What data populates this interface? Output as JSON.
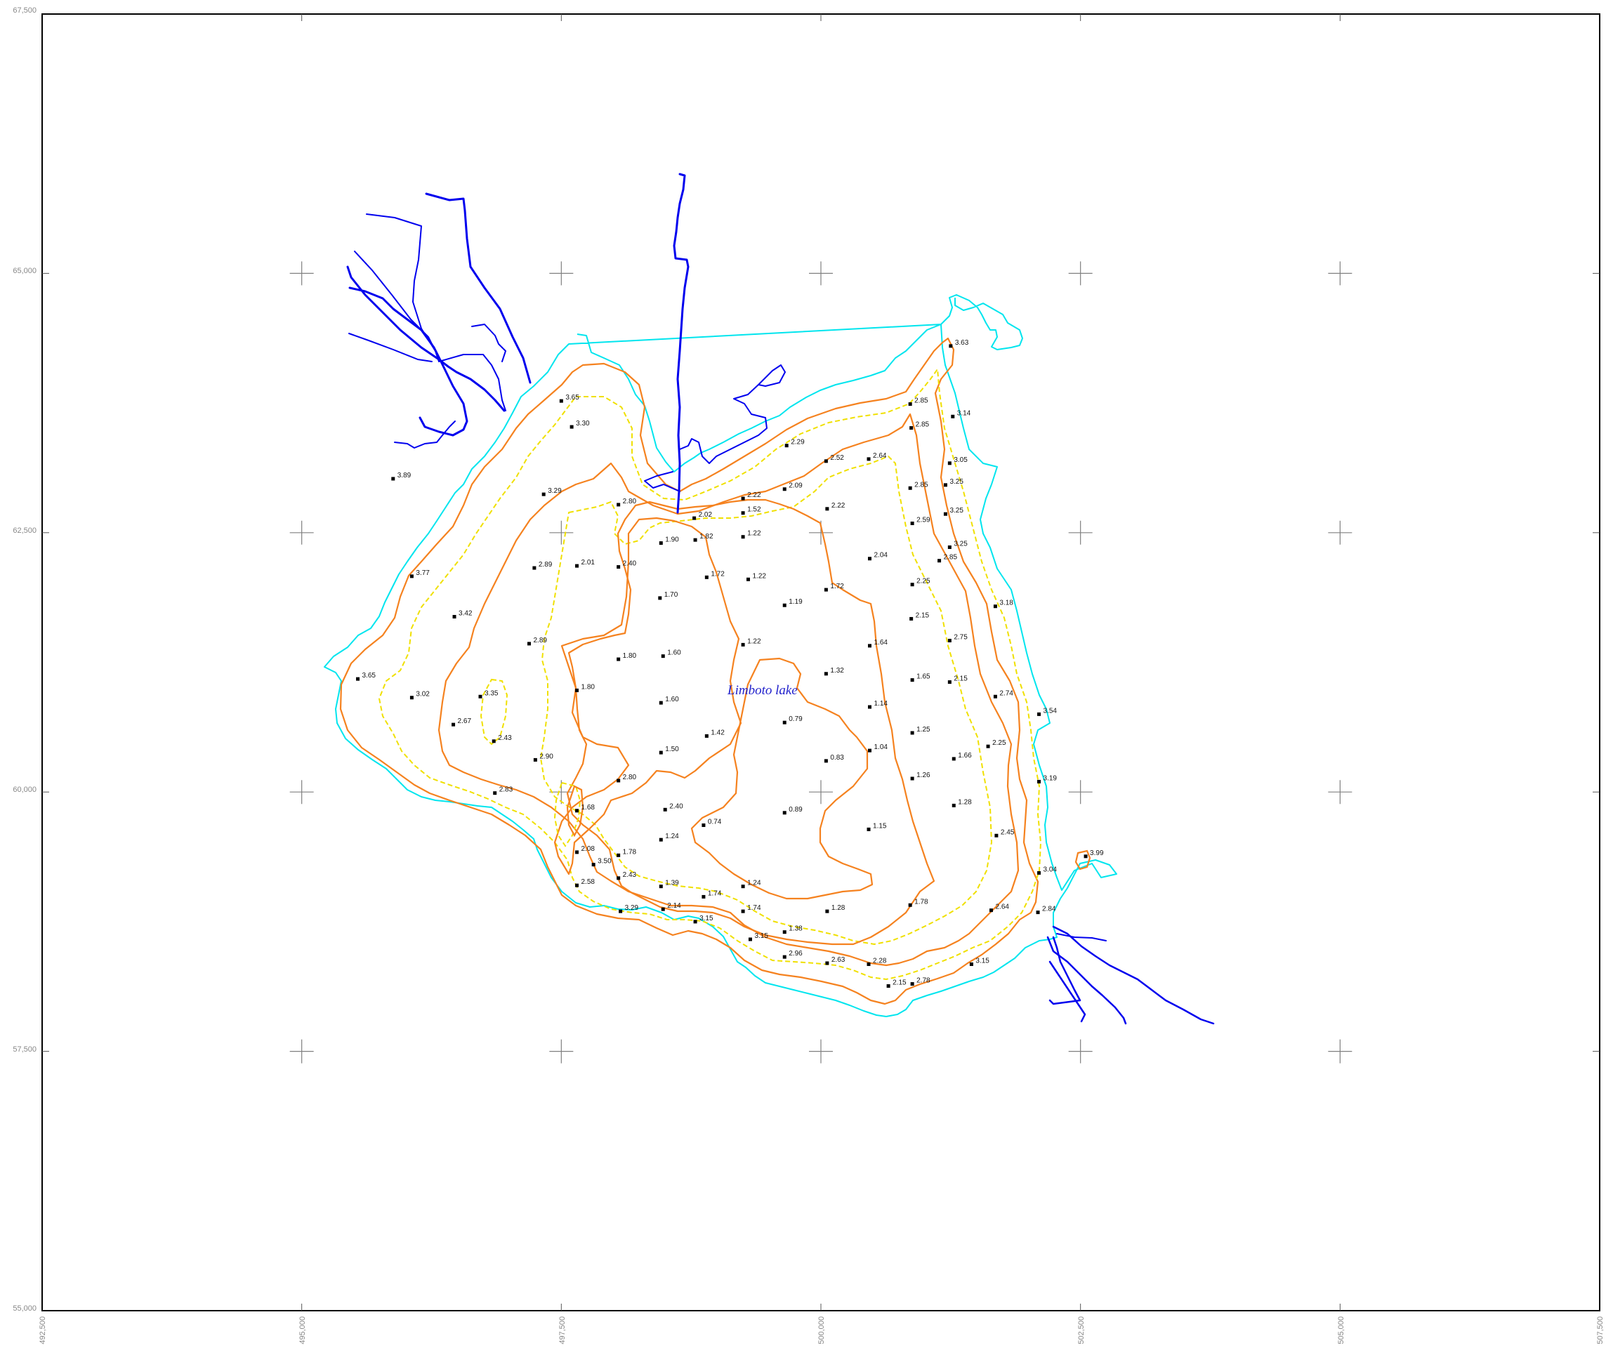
{
  "map": {
    "lake_label": "Limboto lake",
    "x_ticks": [
      "492,500",
      "495,000",
      "497,500",
      "500,000",
      "502,500",
      "505,000",
      "507,500"
    ],
    "y_ticks": [
      "67,500",
      "65,000",
      "62,500",
      "60,000",
      "57,500",
      "55,000"
    ],
    "colors": {
      "frame": "#000000",
      "shoreline": "#00e5ee",
      "river": "#0000ee",
      "contour_solid": "#f5821f",
      "contour_dashed": "#f0e000",
      "grid_cross": "#808080",
      "lake_label": "#2222cc"
    },
    "soundings": [
      {
        "label": "3.65",
        "e": 497500,
        "n": 63770
      },
      {
        "label": "3.30",
        "e": 497600,
        "n": 63520
      },
      {
        "label": "3.89",
        "e": 495880,
        "n": 63020
      },
      {
        "label": "3.29",
        "e": 497330,
        "n": 62870
      },
      {
        "label": "2.80",
        "e": 498050,
        "n": 62770
      },
      {
        "label": "2.02",
        "e": 498780,
        "n": 62640
      },
      {
        "label": "2.22",
        "e": 499250,
        "n": 62830
      },
      {
        "label": "2.09",
        "e": 499650,
        "n": 62920
      },
      {
        "label": "1.52",
        "e": 499250,
        "n": 62690
      },
      {
        "label": "2.29",
        "e": 499670,
        "n": 63340
      },
      {
        "label": "2.52",
        "e": 500050,
        "n": 63190
      },
      {
        "label": "2.64",
        "e": 500460,
        "n": 63210
      },
      {
        "label": "2.22",
        "e": 500060,
        "n": 62730
      },
      {
        "label": "1.90",
        "e": 498460,
        "n": 62400
      },
      {
        "label": "1.82",
        "e": 498790,
        "n": 62430
      },
      {
        "label": "1.22",
        "e": 499250,
        "n": 62460
      },
      {
        "label": "2.89",
        "e": 497240,
        "n": 62160
      },
      {
        "label": "2.01",
        "e": 497650,
        "n": 62180
      },
      {
        "label": "2.40",
        "e": 498050,
        "n": 62170
      },
      {
        "label": "1.72",
        "e": 498900,
        "n": 62070
      },
      {
        "label": "1.22",
        "e": 499300,
        "n": 62050
      },
      {
        "label": "1.72",
        "e": 500050,
        "n": 61950
      },
      {
        "label": "1.19",
        "e": 499650,
        "n": 61800
      },
      {
        "label": "1.70",
        "e": 498450,
        "n": 61870
      },
      {
        "label": "3.77",
        "e": 496060,
        "n": 62080
      },
      {
        "label": "3.42",
        "e": 496470,
        "n": 61690
      },
      {
        "label": "2.89",
        "e": 497190,
        "n": 61430
      },
      {
        "label": "1.80",
        "e": 498050,
        "n": 61280
      },
      {
        "label": "1.60",
        "e": 498480,
        "n": 61310
      },
      {
        "label": "1.22",
        "e": 499250,
        "n": 61420
      },
      {
        "label": "1.32",
        "e": 500050,
        "n": 61140
      },
      {
        "label": "1.64",
        "e": 500470,
        "n": 61410
      },
      {
        "label": "3.65",
        "e": 495540,
        "n": 61090
      },
      {
        "label": "3.02",
        "e": 496060,
        "n": 60910
      },
      {
        "label": "3.35",
        "e": 496720,
        "n": 60920
      },
      {
        "label": "1.80",
        "e": 497650,
        "n": 60980
      },
      {
        "label": "1.60",
        "e": 498460,
        "n": 60860
      },
      {
        "label": "2.67",
        "e": 496460,
        "n": 60650
      },
      {
        "label": "2.43",
        "e": 496850,
        "n": 60490
      },
      {
        "label": "1.42",
        "e": 498900,
        "n": 60540
      },
      {
        "label": "0.79",
        "e": 499650,
        "n": 60670
      },
      {
        "label": "1.14",
        "e": 500470,
        "n": 60820
      },
      {
        "label": "1.04",
        "e": 500470,
        "n": 60400
      },
      {
        "label": "0.83",
        "e": 500050,
        "n": 60300
      },
      {
        "label": "1.50",
        "e": 498460,
        "n": 60380
      },
      {
        "label": "2.90",
        "e": 497250,
        "n": 60310
      },
      {
        "label": "2.80",
        "e": 498050,
        "n": 60110
      },
      {
        "label": "2.83",
        "e": 496860,
        "n": 59990
      },
      {
        "label": "1.68",
        "e": 497650,
        "n": 59820
      },
      {
        "label": "2.40",
        "e": 498500,
        "n": 59830
      },
      {
        "label": "0.74",
        "e": 498870,
        "n": 59680
      },
      {
        "label": "0.89",
        "e": 499650,
        "n": 59800
      },
      {
        "label": "1.15",
        "e": 500460,
        "n": 59640
      },
      {
        "label": "1.24",
        "e": 498460,
        "n": 59540
      },
      {
        "label": "2.08",
        "e": 497650,
        "n": 59420
      },
      {
        "label": "1.78",
        "e": 498050,
        "n": 59390
      },
      {
        "label": "3.50",
        "e": 497810,
        "n": 59300
      },
      {
        "label": "2.43",
        "e": 498050,
        "n": 59170
      },
      {
        "label": "2.58",
        "e": 497650,
        "n": 59100
      },
      {
        "label": "1.39",
        "e": 498460,
        "n": 59090
      },
      {
        "label": "1.24",
        "e": 499250,
        "n": 59090
      },
      {
        "label": "1.74",
        "e": 498870,
        "n": 58990
      },
      {
        "label": "1.74",
        "e": 499250,
        "n": 58850
      },
      {
        "label": "1.28",
        "e": 500060,
        "n": 58850
      },
      {
        "label": "1.78",
        "e": 500860,
        "n": 58910
      },
      {
        "label": "2.64",
        "e": 501640,
        "n": 58860
      },
      {
        "label": "2.84",
        "e": 502090,
        "n": 58840
      },
      {
        "label": "3.29",
        "e": 498070,
        "n": 58850
      },
      {
        "label": "2.14",
        "e": 498480,
        "n": 58870
      },
      {
        "label": "3.15",
        "e": 498790,
        "n": 58750
      },
      {
        "label": "3.15",
        "e": 499320,
        "n": 58580
      },
      {
        "label": "1.38",
        "e": 499650,
        "n": 58650
      },
      {
        "label": "2.96",
        "e": 499650,
        "n": 58410
      },
      {
        "label": "2.63",
        "e": 500060,
        "n": 58350
      },
      {
        "label": "2.28",
        "e": 500460,
        "n": 58340
      },
      {
        "label": "2.15",
        "e": 500650,
        "n": 58130
      },
      {
        "label": "2.78",
        "e": 500880,
        "n": 58150
      },
      {
        "label": "3.15",
        "e": 501450,
        "n": 58340
      },
      {
        "label": "3.04",
        "e": 502100,
        "n": 59220
      },
      {
        "label": "3.99",
        "e": 502550,
        "n": 59380
      },
      {
        "label": "2.45",
        "e": 501690,
        "n": 59580
      },
      {
        "label": "1.28",
        "e": 501280,
        "n": 59870
      },
      {
        "label": "1.26",
        "e": 500880,
        "n": 60130
      },
      {
        "label": "3.19",
        "e": 502100,
        "n": 60100
      },
      {
        "label": "1.66",
        "e": 501280,
        "n": 60320
      },
      {
        "label": "2.25",
        "e": 501610,
        "n": 60440
      },
      {
        "label": "1.25",
        "e": 500880,
        "n": 60570
      },
      {
        "label": "3.54",
        "e": 502100,
        "n": 60750
      },
      {
        "label": "2.74",
        "e": 501680,
        "n": 60920
      },
      {
        "label": "1.65",
        "e": 500880,
        "n": 61080
      },
      {
        "label": "2.15",
        "e": 501240,
        "n": 61060
      },
      {
        "label": "2.75",
        "e": 501240,
        "n": 61460
      },
      {
        "label": "2.15",
        "e": 500870,
        "n": 61670
      },
      {
        "label": "3.18",
        "e": 501680,
        "n": 61790
      },
      {
        "label": "2.25",
        "e": 500880,
        "n": 62000
      },
      {
        "label": "2.04",
        "e": 500470,
        "n": 62250
      },
      {
        "label": "2.85",
        "e": 501140,
        "n": 62230
      },
      {
        "label": "3.25",
        "e": 501240,
        "n": 62360
      },
      {
        "label": "2.59",
        "e": 500880,
        "n": 62590
      },
      {
        "label": "3.25",
        "e": 501200,
        "n": 62680
      },
      {
        "label": "2.85",
        "e": 500860,
        "n": 62930
      },
      {
        "label": "3.25",
        "e": 501200,
        "n": 62960
      },
      {
        "label": "3.05",
        "e": 501240,
        "n": 63170
      },
      {
        "label": "2.85",
        "e": 500870,
        "n": 63510
      },
      {
        "label": "3.14",
        "e": 501270,
        "n": 63620
      },
      {
        "label": "2.85",
        "e": 500860,
        "n": 63740
      },
      {
        "label": "3.63",
        "e": 501250,
        "n": 64300
      }
    ]
  }
}
